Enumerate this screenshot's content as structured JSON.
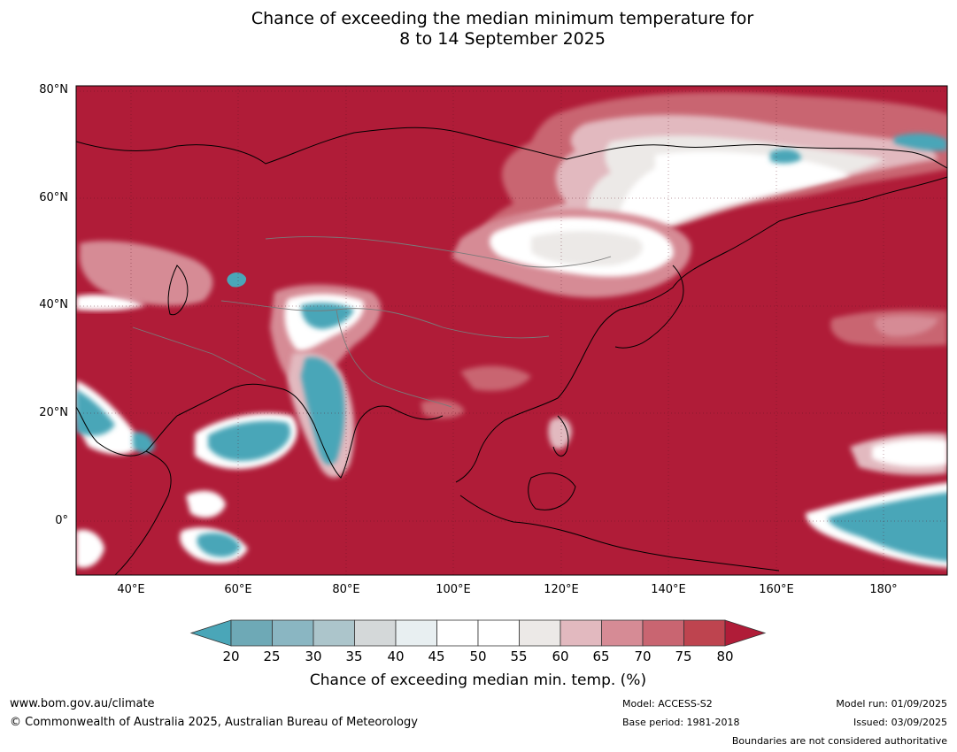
{
  "title": {
    "line1": "Chance of exceeding the median minimum temperature for",
    "line2": "8 to 14 September 2025"
  },
  "map": {
    "lat_labels": [
      "80°N",
      "60°N",
      "40°N",
      "20°N",
      "0°"
    ],
    "lon_labels": [
      "40°E",
      "60°E",
      "80°E",
      "100°E",
      "120°E",
      "140°E",
      "160°E",
      "180°"
    ],
    "extent": {
      "lon_min": 30,
      "lon_max": 191,
      "lat_min": -10,
      "lat_max": 81
    }
  },
  "colorbar": {
    "ticks": [
      "20",
      "25",
      "30",
      "35",
      "40",
      "45",
      "50",
      "55",
      "60",
      "65",
      "70",
      "75",
      "80"
    ],
    "colors": [
      "#4aa6b8",
      "#6ea9b6",
      "#8ab6c2",
      "#acc5cb",
      "#d4d8d9",
      "#e8eff1",
      "#ffffff",
      "#ffffff",
      "#ece9e7",
      "#e2b9bf",
      "#d68b95",
      "#c96571",
      "#be444f",
      "#b01c38"
    ],
    "label": "Chance of exceeding median min. temp. (%)"
  },
  "footer": {
    "website": "www.bom.gov.au/climate",
    "copyright": "© Commonwealth of Australia 2025, Australian Bureau of Meteorology",
    "model": "Model: ACCESS-S2",
    "base_period": "Base period: 1981-2018",
    "model_run": "Model run: 01/09/2025",
    "issued": "Issued: 03/09/2025",
    "disclaimer": "Boundaries are not considered authoritative"
  }
}
